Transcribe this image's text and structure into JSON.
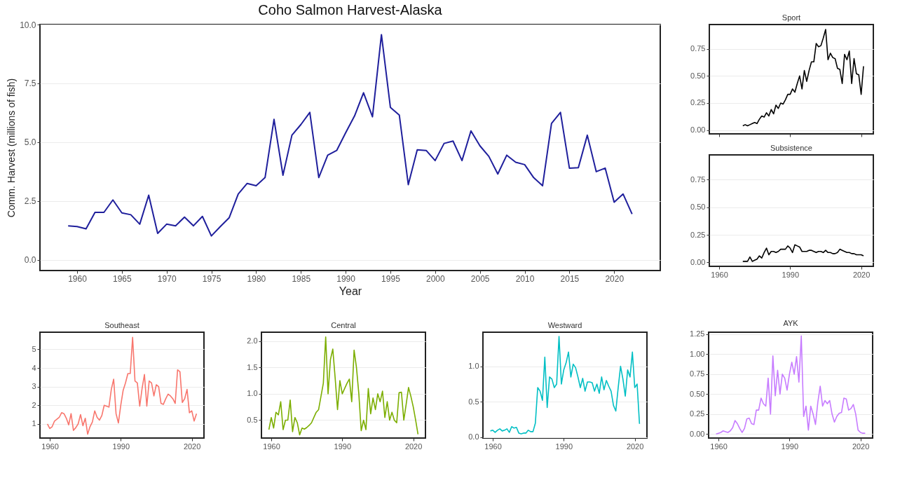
{
  "chart_data": [
    {
      "type": "line",
      "title": "Coho Salmon Harvest-Alaska",
      "xlabel": "Year",
      "ylabel": "Comm. Harvest (millions of fish)",
      "color": "#1f1f9c",
      "grid": "y",
      "xlim": [
        1955.85,
        2025.15
      ],
      "xticks": [
        1960,
        1965,
        1970,
        1975,
        1980,
        1985,
        1990,
        1995,
        2000,
        2005,
        2010,
        2015,
        2020
      ],
      "ylim": [
        -0.45,
        10
      ],
      "yticks": [
        {
          "value": 0,
          "label": "0.0"
        },
        {
          "value": 2.5,
          "label": "2.5"
        },
        {
          "value": 5,
          "label": "5.0"
        },
        {
          "value": 7.5,
          "label": "7.5"
        },
        {
          "value": 10,
          "label": "10.0"
        }
      ],
      "x": [
        1959,
        1960,
        1961,
        1962,
        1963,
        1964,
        1965,
        1966,
        1967,
        1968,
        1969,
        1970,
        1971,
        1972,
        1973,
        1974,
        1975,
        1976,
        1977,
        1978,
        1979,
        1980,
        1981,
        1982,
        1983,
        1984,
        1985,
        1986,
        1987,
        1988,
        1989,
        1990,
        1991,
        1992,
        1993,
        1994,
        1995,
        1996,
        1997,
        1998,
        1999,
        2000,
        2001,
        2002,
        2003,
        2004,
        2005,
        2006,
        2007,
        2008,
        2009,
        2010,
        2011,
        2012,
        2013,
        2014,
        2015,
        2016,
        2017,
        2018,
        2019,
        2020,
        2021,
        2022
      ],
      "values": [
        1.45,
        1.42,
        1.32,
        2.02,
        2.02,
        2.55,
        2.0,
        1.92,
        1.52,
        2.75,
        1.13,
        1.52,
        1.45,
        1.82,
        1.45,
        1.85,
        1.02,
        1.42,
        1.8,
        2.8,
        3.25,
        3.15,
        3.5,
        5.97,
        3.6,
        5.3,
        5.75,
        6.27,
        3.5,
        4.45,
        4.65,
        5.4,
        6.12,
        7.1,
        6.08,
        9.57,
        6.48,
        6.15,
        3.2,
        4.68,
        4.65,
        4.22,
        4.95,
        5.05,
        4.22,
        5.48,
        4.85,
        4.4,
        3.65,
        4.45,
        4.15,
        4.05,
        3.5,
        3.15,
        5.8,
        6.27,
        3.9,
        3.92,
        5.3,
        3.75,
        3.9,
        2.45,
        2.8,
        1.95
      ]
    },
    {
      "type": "line",
      "title": "Sport",
      "color": "#000000",
      "grid": "y",
      "tick_labels": "y",
      "xlim": [
        1955.85,
        2025.15
      ],
      "xticks": [
        1960,
        1990,
        2020
      ],
      "ylim": [
        -0.035,
        0.975
      ],
      "yticks": [
        {
          "value": 0,
          "label": "0.00"
        },
        {
          "value": 0.25,
          "label": "0.25"
        },
        {
          "value": 0.5,
          "label": "0.50"
        },
        {
          "value": 0.75,
          "label": "0.75"
        }
      ],
      "x": [
        1970,
        1971,
        1972,
        1973,
        1974,
        1975,
        1976,
        1977,
        1978,
        1979,
        1980,
        1981,
        1982,
        1983,
        1984,
        1985,
        1986,
        1987,
        1988,
        1989,
        1990,
        1991,
        1992,
        1993,
        1994,
        1995,
        1996,
        1997,
        1998,
        1999,
        2000,
        2001,
        2002,
        2003,
        2004,
        2005,
        2006,
        2007,
        2008,
        2009,
        2010,
        2011,
        2012,
        2013,
        2014,
        2015,
        2016,
        2017,
        2018,
        2019,
        2020,
        2021
      ],
      "values": [
        0.04,
        0.05,
        0.04,
        0.05,
        0.06,
        0.07,
        0.06,
        0.1,
        0.13,
        0.12,
        0.16,
        0.13,
        0.19,
        0.15,
        0.23,
        0.2,
        0.25,
        0.24,
        0.28,
        0.33,
        0.33,
        0.38,
        0.35,
        0.43,
        0.5,
        0.38,
        0.55,
        0.45,
        0.55,
        0.63,
        0.63,
        0.8,
        0.77,
        0.78,
        0.85,
        0.93,
        0.65,
        0.71,
        0.67,
        0.66,
        0.57,
        0.56,
        0.43,
        0.7,
        0.65,
        0.73,
        0.43,
        0.66,
        0.52,
        0.51,
        0.33,
        0.59
      ]
    },
    {
      "type": "line",
      "title": "Subsistence",
      "color": "#000000",
      "grid": "y",
      "xlim": [
        1955.85,
        2025.15
      ],
      "xticks": [
        1960,
        1990,
        2020
      ],
      "ylim": [
        -0.035,
        0.975
      ],
      "yticks": [
        {
          "value": 0,
          "label": "0.00"
        },
        {
          "value": 0.25,
          "label": "0.25"
        },
        {
          "value": 0.5,
          "label": "0.50"
        },
        {
          "value": 0.75,
          "label": "0.75"
        }
      ],
      "x": [
        1970,
        1971,
        1972,
        1973,
        1974,
        1975,
        1976,
        1977,
        1978,
        1979,
        1980,
        1981,
        1982,
        1983,
        1984,
        1985,
        1986,
        1987,
        1988,
        1989,
        1990,
        1991,
        1992,
        1993,
        1994,
        1995,
        1996,
        1997,
        1998,
        1999,
        2000,
        2001,
        2002,
        2003,
        2004,
        2005,
        2006,
        2007,
        2008,
        2009,
        2010,
        2011,
        2012,
        2013,
        2014,
        2015,
        2016,
        2017,
        2018,
        2019,
        2020,
        2021
      ],
      "values": [
        0.01,
        0.01,
        0.01,
        0.05,
        0.01,
        0.02,
        0.03,
        0.06,
        0.04,
        0.09,
        0.13,
        0.07,
        0.1,
        0.1,
        0.09,
        0.1,
        0.12,
        0.12,
        0.12,
        0.15,
        0.13,
        0.09,
        0.16,
        0.15,
        0.14,
        0.1,
        0.1,
        0.1,
        0.11,
        0.11,
        0.1,
        0.09,
        0.1,
        0.1,
        0.09,
        0.11,
        0.09,
        0.09,
        0.08,
        0.08,
        0.09,
        0.12,
        0.11,
        0.1,
        0.09,
        0.09,
        0.08,
        0.08,
        0.07,
        0.07,
        0.07,
        0.06
      ]
    },
    {
      "type": "line",
      "title": "Southeast",
      "color": "#f8766d",
      "grid": "y",
      "xlim": [
        1955.85,
        2025.15
      ],
      "xticks": [
        1960,
        1990,
        2020
      ],
      "ylim": [
        0.24,
        5.92
      ],
      "yticks": [
        1,
        2,
        3,
        4,
        5
      ],
      "x": [
        1959,
        1960,
        1961,
        1962,
        1963,
        1964,
        1965,
        1966,
        1967,
        1968,
        1969,
        1970,
        1971,
        1972,
        1973,
        1974,
        1975,
        1976,
        1977,
        1978,
        1979,
        1980,
        1981,
        1982,
        1983,
        1984,
        1985,
        1986,
        1987,
        1988,
        1989,
        1990,
        1991,
        1992,
        1993,
        1994,
        1995,
        1996,
        1997,
        1998,
        1999,
        2000,
        2001,
        2002,
        2003,
        2004,
        2005,
        2006,
        2007,
        2008,
        2009,
        2010,
        2011,
        2012,
        2013,
        2014,
        2015,
        2016,
        2017,
        2018,
        2019,
        2020,
        2021,
        2022
      ],
      "values": [
        1.0,
        0.75,
        0.85,
        1.15,
        1.25,
        1.35,
        1.6,
        1.55,
        1.3,
        0.95,
        1.55,
        0.65,
        0.8,
        1.0,
        1.5,
        0.9,
        1.3,
        0.45,
        0.85,
        1.1,
        1.7,
        1.35,
        1.2,
        1.45,
        2.0,
        1.95,
        1.9,
        2.85,
        3.4,
        1.55,
        1.05,
        2.0,
        2.8,
        3.2,
        3.7,
        3.7,
        5.65,
        3.3,
        3.2,
        1.95,
        2.9,
        3.65,
        1.95,
        3.3,
        3.2,
        2.5,
        3.1,
        3.0,
        2.1,
        2.05,
        2.35,
        2.6,
        2.5,
        2.35,
        2.1,
        3.9,
        3.8,
        2.15,
        2.35,
        2.85,
        1.6,
        1.7,
        1.15,
        1.55
      ]
    },
    {
      "type": "line",
      "title": "Central",
      "color": "#7cae00",
      "grid": "y",
      "xlim": [
        1955.85,
        2025.15
      ],
      "xticks": [
        1960,
        1990,
        2020
      ],
      "ylim": [
        0.16,
        2.17
      ],
      "yticks": [
        {
          "value": 0.5,
          "label": "0.5"
        },
        {
          "value": 1,
          "label": "1.0"
        },
        {
          "value": 1.5,
          "label": "1.5"
        },
        {
          "value": 2,
          "label": "2.0"
        }
      ],
      "x": [
        1959,
        1960,
        1961,
        1962,
        1963,
        1964,
        1965,
        1966,
        1967,
        1968,
        1969,
        1970,
        1971,
        1972,
        1973,
        1974,
        1975,
        1976,
        1977,
        1978,
        1979,
        1980,
        1981,
        1982,
        1983,
        1984,
        1985,
        1986,
        1987,
        1988,
        1989,
        1990,
        1991,
        1992,
        1993,
        1994,
        1995,
        1996,
        1997,
        1998,
        1999,
        2000,
        2001,
        2002,
        2003,
        2004,
        2005,
        2006,
        2007,
        2008,
        2009,
        2010,
        2011,
        2012,
        2013,
        2014,
        2015,
        2016,
        2017,
        2018,
        2019,
        2020,
        2021,
        2022
      ],
      "values": [
        0.32,
        0.55,
        0.35,
        0.65,
        0.6,
        0.85,
        0.32,
        0.5,
        0.5,
        0.88,
        0.28,
        0.55,
        0.45,
        0.22,
        0.35,
        0.33,
        0.36,
        0.4,
        0.45,
        0.55,
        0.65,
        0.7,
        0.95,
        1.2,
        2.08,
        1.0,
        1.65,
        1.85,
        1.3,
        0.7,
        1.25,
        1.0,
        1.1,
        1.2,
        1.28,
        0.85,
        1.83,
        1.5,
        1.0,
        0.3,
        0.5,
        0.32,
        1.1,
        0.62,
        0.92,
        0.7,
        1.0,
        0.85,
        1.05,
        0.55,
        0.85,
        0.5,
        0.65,
        0.5,
        0.45,
        1.02,
        1.03,
        0.5,
        0.8,
        1.12,
        0.95,
        0.75,
        0.5,
        0.23
      ]
    },
    {
      "type": "line",
      "title": "Westward",
      "color": "#00bfc4",
      "grid": "y",
      "xlim": [
        1955.85,
        2025.15
      ],
      "xticks": [
        1960,
        1990,
        2020
      ],
      "ylim": [
        -0.01,
        1.48
      ],
      "yticks": [
        {
          "value": 0,
          "label": "0.0"
        },
        {
          "value": 0.5,
          "label": "0.5"
        },
        {
          "value": 1,
          "label": "1.0"
        }
      ],
      "x": [
        1959,
        1960,
        1961,
        1962,
        1963,
        1964,
        1965,
        1966,
        1967,
        1968,
        1969,
        1970,
        1971,
        1972,
        1973,
        1974,
        1975,
        1976,
        1977,
        1978,
        1979,
        1980,
        1981,
        1982,
        1983,
        1984,
        1985,
        1986,
        1987,
        1988,
        1989,
        1990,
        1991,
        1992,
        1993,
        1994,
        1995,
        1996,
        1997,
        1998,
        1999,
        2000,
        2001,
        2002,
        2003,
        2004,
        2005,
        2006,
        2007,
        2008,
        2009,
        2010,
        2011,
        2012,
        2013,
        2014,
        2015,
        2016,
        2017,
        2018,
        2019,
        2020,
        2021,
        2022
      ],
      "values": [
        0.09,
        0.1,
        0.07,
        0.1,
        0.12,
        0.09,
        0.1,
        0.12,
        0.07,
        0.15,
        0.13,
        0.14,
        0.06,
        0.05,
        0.06,
        0.06,
        0.1,
        0.08,
        0.08,
        0.2,
        0.7,
        0.65,
        0.52,
        1.13,
        0.42,
        0.85,
        0.82,
        0.7,
        0.75,
        1.42,
        0.75,
        0.95,
        1.05,
        1.2,
        0.85,
        1.03,
        0.98,
        0.85,
        0.7,
        0.83,
        0.65,
        0.78,
        0.78,
        0.77,
        0.65,
        0.75,
        0.62,
        0.85,
        0.67,
        0.8,
        0.72,
        0.65,
        0.45,
        0.37,
        0.7,
        1.0,
        0.82,
        0.58,
        0.95,
        0.85,
        1.2,
        0.7,
        0.75,
        0.19
      ]
    },
    {
      "type": "line",
      "title": "AYK",
      "color": "#c77cff",
      "grid": "y",
      "xlim": [
        1955.85,
        2025.15
      ],
      "xticks": [
        1960,
        1990,
        2020
      ],
      "ylim": [
        -0.05,
        1.276
      ],
      "yticks": [
        {
          "value": 0,
          "label": "0.00"
        },
        {
          "value": 0.25,
          "label": "0.25"
        },
        {
          "value": 0.5,
          "label": "0.50"
        },
        {
          "value": 0.75,
          "label": "0.75"
        },
        {
          "value": 1,
          "label": "1.00"
        },
        {
          "value": 1.25,
          "label": "1.25"
        }
      ],
      "x": [
        1959,
        1960,
        1961,
        1962,
        1963,
        1964,
        1965,
        1966,
        1967,
        1968,
        1969,
        1970,
        1971,
        1972,
        1973,
        1974,
        1975,
        1976,
        1977,
        1978,
        1979,
        1980,
        1981,
        1982,
        1983,
        1984,
        1985,
        1986,
        1987,
        1988,
        1989,
        1990,
        1991,
        1992,
        1993,
        1994,
        1995,
        1996,
        1997,
        1998,
        1999,
        2000,
        2001,
        2002,
        2003,
        2004,
        2005,
        2006,
        2007,
        2008,
        2009,
        2010,
        2011,
        2012,
        2013,
        2014,
        2015,
        2016,
        2017,
        2018,
        2019,
        2020,
        2021,
        2022
      ],
      "values": [
        0.0,
        0.01,
        0.02,
        0.04,
        0.03,
        0.02,
        0.04,
        0.08,
        0.17,
        0.13,
        0.07,
        0.02,
        0.07,
        0.19,
        0.2,
        0.13,
        0.12,
        0.3,
        0.3,
        0.45,
        0.38,
        0.35,
        0.7,
        0.25,
        0.98,
        0.48,
        0.8,
        0.5,
        0.75,
        0.7,
        0.55,
        0.75,
        0.9,
        0.75,
        0.97,
        0.65,
        1.23,
        0.22,
        0.35,
        0.05,
        0.35,
        0.25,
        0.12,
        0.4,
        0.6,
        0.35,
        0.42,
        0.38,
        0.42,
        0.25,
        0.15,
        0.22,
        0.26,
        0.27,
        0.45,
        0.44,
        0.3,
        0.32,
        0.37,
        0.25,
        0.05,
        0.02,
        0.01,
        0.01
      ]
    }
  ]
}
